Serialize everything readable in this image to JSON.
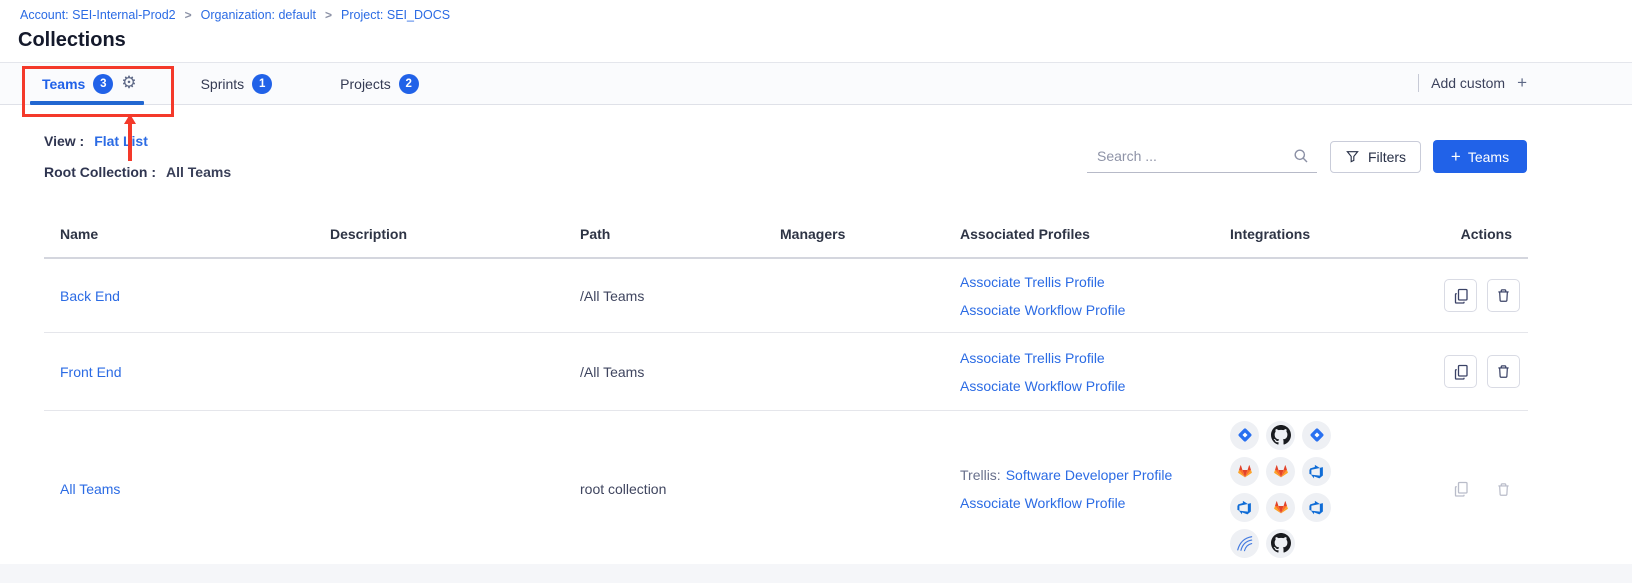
{
  "colors": {
    "accent_blue": "#2162e8",
    "link_blue": "#2b6be4",
    "annotation_red": "#f4392a"
  },
  "breadcrumb": {
    "separator": ">",
    "items": [
      {
        "label": "Account: SEI-Internal-Prod2"
      },
      {
        "label": "Organization: default"
      },
      {
        "label": "Project: SEI_DOCS"
      }
    ]
  },
  "page_title": "Collections",
  "tabs": [
    {
      "label": "Teams",
      "count": "3",
      "active": true,
      "has_gear": true
    },
    {
      "label": "Sprints",
      "count": "1",
      "active": false
    },
    {
      "label": "Projects",
      "count": "2",
      "active": false
    }
  ],
  "add_custom": {
    "label": "Add custom",
    "plus": "+"
  },
  "view": {
    "label": "View :",
    "value": "Flat List"
  },
  "root_collection": {
    "label": "Root Collection :",
    "value": "All Teams"
  },
  "search": {
    "placeholder": "Search ..."
  },
  "buttons": {
    "filters": "Filters",
    "add_teams": "Teams",
    "add_teams_plus": "+"
  },
  "table": {
    "columns": [
      "Name",
      "Description",
      "Path",
      "Managers",
      "Associated Profiles",
      "Integrations",
      "Actions"
    ],
    "rows": [
      {
        "name": "Back End",
        "description": "",
        "path": "/All Teams",
        "managers": "",
        "profiles": [
          {
            "text": "Associate Trellis Profile"
          },
          {
            "text": "Associate Workflow Profile"
          }
        ],
        "integrations": [],
        "actions_disabled": false
      },
      {
        "name": "Front End",
        "description": "",
        "path": "/All Teams",
        "managers": "",
        "profiles": [
          {
            "text": "Associate Trellis Profile"
          },
          {
            "text": "Associate Workflow Profile"
          }
        ],
        "integrations": [],
        "actions_disabled": false
      },
      {
        "name": "All Teams",
        "description": "",
        "path": "root collection",
        "managers": "",
        "profiles": [
          {
            "prefix": "Trellis:",
            "text": "Software Developer Profile"
          },
          {
            "text": "Associate Workflow Profile"
          }
        ],
        "integrations": [
          "jira",
          "github",
          "jira",
          "gitlab",
          "gitlab",
          "azure-devops",
          "azure-devops",
          "gitlab",
          "azure-devops",
          "sonarqube",
          "github"
        ],
        "actions_disabled": true
      }
    ]
  }
}
